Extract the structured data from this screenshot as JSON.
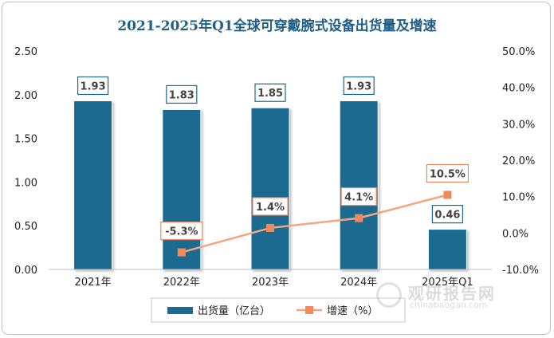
{
  "chart_data": {
    "type": "bar",
    "title": "2021-2025年Q1全球可穿戴腕式设备出货量及增速",
    "categories": [
      "2021年",
      "2022年",
      "2023年",
      "2024年",
      "2025年Q1"
    ],
    "series": [
      {
        "name": "出货量（亿台）",
        "type": "bar",
        "axis": "left",
        "color": "#1b6a8f",
        "values": [
          1.93,
          1.83,
          1.85,
          1.93,
          0.46
        ],
        "labels": [
          "1.93",
          "1.83",
          "1.85",
          "1.93",
          "0.46"
        ]
      },
      {
        "name": "增速（%）",
        "type": "line",
        "axis": "right",
        "color": "#f4a582",
        "values": [
          null,
          -5.3,
          1.4,
          4.1,
          10.5
        ],
        "labels": [
          "",
          "-5.3%",
          "1.4%",
          "4.1%",
          "10.5%"
        ]
      }
    ],
    "yleft": {
      "min": 0,
      "max": 2.5,
      "ticks": [
        "0.00",
        "0.50",
        "1.00",
        "1.50",
        "2.00",
        "2.50"
      ]
    },
    "yright": {
      "min": -10,
      "max": 50,
      "ticks": [
        "-10.0%",
        "0.0%",
        "10.0%",
        "20.0%",
        "30.0%",
        "40.0%",
        "50.0%"
      ]
    },
    "grid": false,
    "legend_position": "bottom"
  },
  "watermark": {
    "text_cn": "观研报告网",
    "text_en": "chinabaogao.com"
  }
}
